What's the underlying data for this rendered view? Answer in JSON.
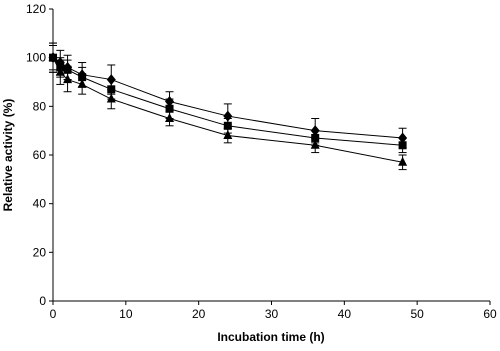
{
  "chart_data": {
    "type": "line",
    "x_label": "Incubation time (h)",
    "y_label": "Relative activity (%)",
    "x": [
      0,
      1,
      2,
      4,
      8,
      16,
      24,
      36,
      48
    ],
    "series": [
      {
        "color": "#000000",
        "marker": "diamond",
        "values": [
          100,
          98,
          96,
          93,
          91,
          82,
          76,
          70,
          67
        ],
        "errors": [
          6,
          5,
          5,
          5,
          6,
          4,
          5,
          5,
          4
        ]
      },
      {
        "color": "#000000",
        "marker": "square",
        "values": [
          100,
          96,
          95,
          92,
          87,
          79,
          72,
          67,
          64
        ],
        "errors": [
          5,
          4,
          4,
          4,
          4,
          4,
          3,
          3,
          3
        ]
      },
      {
        "color": "#000000",
        "marker": "triangle",
        "values": [
          100,
          94,
          91,
          89,
          83,
          75,
          68,
          64,
          57
        ],
        "errors": [
          6,
          5,
          5,
          4,
          4,
          3,
          3,
          3,
          3
        ]
      }
    ],
    "xlim": [
      0,
      60
    ],
    "xticks": [
      0,
      10,
      20,
      30,
      40,
      50,
      60
    ],
    "ylim": [
      0,
      120
    ],
    "yticks": [
      0,
      20,
      40,
      60,
      80,
      100,
      120
    ],
    "grid": false
  }
}
